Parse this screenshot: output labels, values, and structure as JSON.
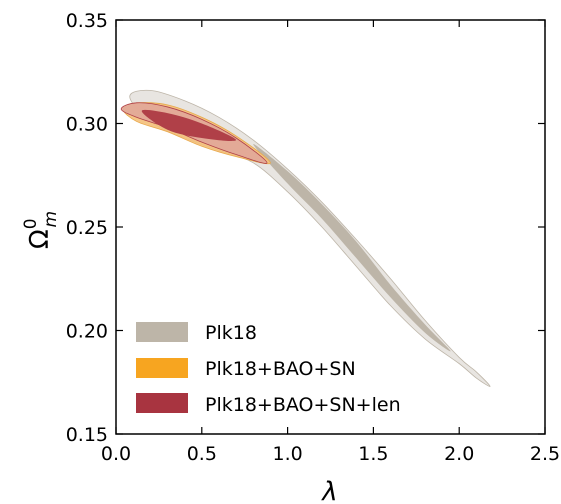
{
  "chart_data": {
    "type": "contour",
    "xlabel": "λ",
    "ylabel_main": "Ω",
    "ylabel_sup": "0",
    "ylabel_sub": "m",
    "xlim": [
      0.0,
      2.5
    ],
    "ylim": [
      0.15,
      0.35
    ],
    "xticks": [
      "0.0",
      "0.5",
      "1.0",
      "1.5",
      "2.0",
      "2.5"
    ],
    "yticks": [
      "0.15",
      "0.20",
      "0.25",
      "0.30",
      "0.35"
    ],
    "legend_position": "lower-left",
    "series": [
      {
        "name": "Plk18",
        "color_outer": "#e4e1dc",
        "color_inner": "#bdb5a8",
        "outer": {
          "upper": [
            [
              0.08,
              0.313
            ],
            [
              0.2,
              0.316
            ],
            [
              0.4,
              0.311
            ],
            [
              0.6,
              0.303
            ],
            [
              0.8,
              0.292
            ],
            [
              1.0,
              0.278
            ],
            [
              1.2,
              0.262
            ],
            [
              1.4,
              0.244
            ],
            [
              1.6,
              0.225
            ],
            [
              1.8,
              0.205
            ],
            [
              2.0,
              0.187
            ],
            [
              2.1,
              0.18
            ],
            [
              2.18,
              0.173
            ]
          ],
          "lower": [
            [
              2.18,
              0.173
            ],
            [
              2.1,
              0.177
            ],
            [
              2.0,
              0.184
            ],
            [
              1.8,
              0.196
            ],
            [
              1.6,
              0.212
            ],
            [
              1.4,
              0.231
            ],
            [
              1.2,
              0.25
            ],
            [
              1.0,
              0.267
            ],
            [
              0.8,
              0.281
            ],
            [
              0.6,
              0.287
            ],
            [
              0.4,
              0.293
            ],
            [
              0.2,
              0.301
            ],
            [
              0.08,
              0.306
            ]
          ]
        },
        "inner": {
          "upper": [
            [
              0.8,
              0.29
            ],
            [
              1.0,
              0.277
            ],
            [
              1.2,
              0.261
            ],
            [
              1.4,
              0.243
            ],
            [
              1.6,
              0.222
            ],
            [
              1.8,
              0.203
            ],
            [
              1.95,
              0.19
            ]
          ],
          "lower": [
            [
              1.95,
              0.19
            ],
            [
              1.8,
              0.199
            ],
            [
              1.6,
              0.216
            ],
            [
              1.4,
              0.235
            ],
            [
              1.2,
              0.254
            ],
            [
              1.0,
              0.271
            ],
            [
              0.8,
              0.285
            ]
          ]
        }
      },
      {
        "name": "Plk18+BAO+SN",
        "color_outer": "#f4c07a",
        "color_inner": "#e8a84a",
        "outer": {
          "upper": [
            [
              0.04,
              0.307
            ],
            [
              0.12,
              0.31
            ],
            [
              0.3,
              0.309
            ],
            [
              0.5,
              0.303
            ],
            [
              0.7,
              0.294
            ],
            [
              0.9,
              0.281
            ]
          ],
          "lower": [
            [
              0.9,
              0.281
            ],
            [
              0.7,
              0.284
            ],
            [
              0.5,
              0.289
            ],
            [
              0.3,
              0.296
            ],
            [
              0.12,
              0.301
            ],
            [
              0.04,
              0.304
            ]
          ]
        },
        "inner": null
      },
      {
        "name": "Plk18+BAO+SN+len",
        "color_outer": "#e1a799",
        "color_inner": "#b04048",
        "outer": {
          "upper": [
            [
              0.03,
              0.307
            ],
            [
              0.12,
              0.31
            ],
            [
              0.3,
              0.308
            ],
            [
              0.5,
              0.302
            ],
            [
              0.7,
              0.293
            ],
            [
              0.88,
              0.281
            ]
          ],
          "lower": [
            [
              0.88,
              0.281
            ],
            [
              0.7,
              0.285
            ],
            [
              0.5,
              0.291
            ],
            [
              0.3,
              0.298
            ],
            [
              0.12,
              0.303
            ],
            [
              0.03,
              0.304
            ]
          ]
        },
        "inner": {
          "upper": [
            [
              0.15,
              0.306
            ],
            [
              0.3,
              0.305
            ],
            [
              0.5,
              0.3
            ],
            [
              0.7,
              0.292
            ]
          ],
          "lower": [
            [
              0.7,
              0.292
            ],
            [
              0.5,
              0.293
            ],
            [
              0.3,
              0.297
            ],
            [
              0.15,
              0.302
            ]
          ]
        }
      }
    ]
  },
  "legend": {
    "items": [
      {
        "label": "Plk18",
        "color": "#bdb5a8"
      },
      {
        "label": "Plk18+BAO+SN",
        "color": "#f7a520"
      },
      {
        "label": "Plk18+BAO+SN+len",
        "color": "#a83440"
      }
    ]
  }
}
